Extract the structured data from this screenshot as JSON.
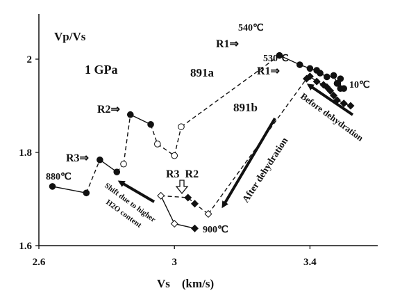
{
  "chart_data": {
    "type": "scatter",
    "title": "",
    "xlabel": "Vs    (km/s)",
    "ylabel": "Vp/Vs",
    "xlim": [
      2.6,
      3.6
    ],
    "ylim": [
      1.6,
      2.05
    ],
    "xticks": [
      "2.6",
      "3",
      "3.4"
    ],
    "yticks": [
      "1.6",
      "1.8",
      "2"
    ],
    "grid": false,
    "series": [
      {
        "name": "891a",
        "marker": "circle",
        "segments": [
          {
            "style": "solid",
            "points": [
              [
                2.64,
                1.727
              ],
              [
                2.74,
                1.713
              ]
            ]
          },
          {
            "style": "dashed",
            "points": [
              [
                2.74,
                1.713
              ],
              [
                2.78,
                1.784
              ]
            ]
          },
          {
            "style": "solid",
            "points": [
              [
                2.78,
                1.784
              ],
              [
                2.83,
                1.758
              ]
            ]
          },
          {
            "style": "dashed",
            "points": [
              [
                2.83,
                1.758
              ],
              [
                2.85,
                1.775
              ]
            ]
          },
          {
            "style": "dashed",
            "points": [
              [
                2.85,
                1.775
              ],
              [
                2.87,
                1.881
              ]
            ]
          },
          {
            "style": "solid",
            "points": [
              [
                2.87,
                1.881
              ],
              [
                2.93,
                1.86
              ]
            ]
          },
          {
            "style": "dashed",
            "points": [
              [
                2.93,
                1.86
              ],
              [
                2.95,
                1.818
              ]
            ]
          },
          {
            "style": "dashed",
            "points": [
              [
                2.95,
                1.818
              ],
              [
                3.0,
                1.793
              ]
            ]
          },
          {
            "style": "dashed",
            "points": [
              [
                3.0,
                1.793
              ],
              [
                3.02,
                1.855
              ]
            ]
          },
          {
            "style": "dashed",
            "points": [
              [
                3.02,
                1.855
              ],
              [
                3.31,
                2.008
              ]
            ]
          },
          {
            "style": "solid",
            "points": [
              [
                3.31,
                2.008
              ],
              [
                3.37,
                1.988
              ],
              [
                3.4,
                1.98
              ],
              [
                3.42,
                1.976
              ],
              [
                3.43,
                1.97
              ],
              [
                3.45,
                1.962
              ],
              [
                3.47,
                1.965
              ],
              [
                3.48,
                1.948
              ],
              [
                3.49,
                1.958
              ],
              [
                3.49,
                1.937
              ],
              [
                3.5,
                1.937
              ]
            ]
          }
        ],
        "points": [
          {
            "x": 2.64,
            "y": 1.727,
            "filled": true
          },
          {
            "x": 2.74,
            "y": 1.713,
            "filled": true
          },
          {
            "x": 2.78,
            "y": 1.784,
            "filled": true
          },
          {
            "x": 2.83,
            "y": 1.758,
            "filled": true
          },
          {
            "x": 2.85,
            "y": 1.775,
            "filled": false
          },
          {
            "x": 2.87,
            "y": 1.881,
            "filled": true
          },
          {
            "x": 2.93,
            "y": 1.86,
            "filled": true
          },
          {
            "x": 2.95,
            "y": 1.818,
            "filled": false
          },
          {
            "x": 3.0,
            "y": 1.793,
            "filled": false
          },
          {
            "x": 3.02,
            "y": 1.855,
            "filled": false
          },
          {
            "x": 3.31,
            "y": 2.008,
            "filled": true
          },
          {
            "x": 3.37,
            "y": 1.988,
            "filled": true
          },
          {
            "x": 3.4,
            "y": 1.98,
            "filled": true
          },
          {
            "x": 3.42,
            "y": 1.976,
            "filled": true
          },
          {
            "x": 3.43,
            "y": 1.97,
            "filled": true
          },
          {
            "x": 3.45,
            "y": 1.962,
            "filled": true
          },
          {
            "x": 3.47,
            "y": 1.965,
            "filled": true
          },
          {
            "x": 3.48,
            "y": 1.948,
            "filled": true
          },
          {
            "x": 3.49,
            "y": 1.958,
            "filled": true
          },
          {
            "x": 3.49,
            "y": 1.937,
            "filled": true
          },
          {
            "x": 3.5,
            "y": 1.937,
            "filled": true
          }
        ]
      },
      {
        "name": "891b",
        "marker": "diamond",
        "segments": [
          {
            "style": "solid",
            "points": [
              [
                3.06,
                1.637
              ],
              [
                3.0,
                1.647
              ],
              [
                2.96,
                1.707
              ]
            ]
          },
          {
            "style": "dashed",
            "points": [
              [
                2.96,
                1.707
              ],
              [
                3.04,
                1.703
              ],
              [
                3.06,
                1.69
              ],
              [
                3.1,
                1.668
              ]
            ]
          },
          {
            "style": "dashed",
            "points": [
              [
                3.1,
                1.668
              ],
              [
                3.39,
                1.958
              ]
            ]
          },
          {
            "style": "solid",
            "points": [
              [
                3.39,
                1.958
              ],
              [
                3.4,
                1.963
              ],
              [
                3.42,
                1.952
              ],
              [
                3.44,
                1.945
              ],
              [
                3.45,
                1.94
              ],
              [
                3.46,
                1.932
              ],
              [
                3.47,
                1.922
              ],
              [
                3.48,
                1.912
              ],
              [
                3.5,
                1.905
              ],
              [
                3.52,
                1.9
              ]
            ]
          }
        ],
        "points": [
          {
            "x": 3.06,
            "y": 1.637,
            "filled": true
          },
          {
            "x": 3.0,
            "y": 1.647,
            "filled": false
          },
          {
            "x": 2.96,
            "y": 1.707,
            "filled": false
          },
          {
            "x": 3.04,
            "y": 1.703,
            "filled": true
          },
          {
            "x": 3.06,
            "y": 1.69,
            "filled": true
          },
          {
            "x": 3.1,
            "y": 1.668,
            "filled": false
          },
          {
            "x": 3.39,
            "y": 1.958,
            "filled": true
          },
          {
            "x": 3.4,
            "y": 1.963,
            "filled": true
          },
          {
            "x": 3.42,
            "y": 1.952,
            "filled": true
          },
          {
            "x": 3.44,
            "y": 1.945,
            "filled": true
          },
          {
            "x": 3.45,
            "y": 1.94,
            "filled": true
          },
          {
            "x": 3.46,
            "y": 1.932,
            "filled": true
          },
          {
            "x": 3.47,
            "y": 1.922,
            "filled": true
          },
          {
            "x": 3.48,
            "y": 1.912,
            "filled": true
          },
          {
            "x": 3.5,
            "y": 1.905,
            "filled": true
          },
          {
            "x": 3.52,
            "y": 1.9,
            "filled": true
          }
        ]
      }
    ],
    "labels": {
      "pressure": "1 GPa",
      "series_a": "891a",
      "series_b": "891b",
      "temp_540": "540℃",
      "temp_530": "530℃",
      "temp_10": "10℃",
      "temp_880": "880℃",
      "temp_900": "900℃",
      "r1_a": "R1⇒",
      "r1_b": "R1⇒",
      "r2": "R2⇒",
      "r3": "R3⇒",
      "r3_r2": "R3  R2",
      "before_dehydration": "Before dehydration",
      "after_dehydration": "After dehydration",
      "shift_line1": "Shift due to higher",
      "shift_line2": "H2O content"
    },
    "colors": {
      "ink": "#111111",
      "background": "#ffffff"
    }
  }
}
